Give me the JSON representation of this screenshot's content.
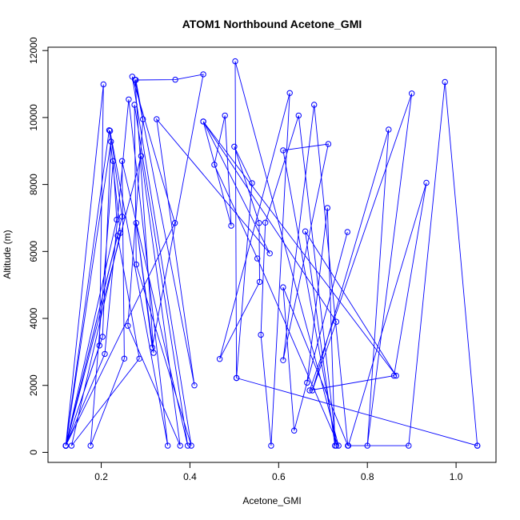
{
  "chart_data": {
    "type": "line",
    "title": "ATOM1 Northbound Acetone_GMI",
    "xlabel": "Acetone_GMI",
    "ylabel": "Altitude (m)",
    "xlim": [
      0.08,
      1.09
    ],
    "ylim": [
      -300,
      12100
    ],
    "xticks": [
      0.2,
      0.4,
      0.6,
      0.8,
      1.0
    ],
    "xtick_labels": [
      "0.2",
      "0.4",
      "0.6",
      "0.8",
      "1.0"
    ],
    "yticks": [
      0,
      2000,
      4000,
      6000,
      8000,
      10000,
      12000
    ],
    "ytick_labels": [
      "0",
      "2000",
      "4000",
      "6000",
      "8000",
      "10000",
      "12000"
    ],
    "grid": false,
    "color": "#0000ff",
    "series": [
      {
        "marker": "open-circle",
        "points": [
          [
            0.12,
            200
          ],
          [
            0.203,
            3450
          ],
          [
            0.222,
            9280
          ],
          [
            0.12,
            200
          ],
          [
            0.208,
            2940
          ],
          [
            0.262,
            10540
          ],
          [
            0.35,
            200
          ],
          [
            0.22,
            9600
          ],
          [
            0.247,
            7040
          ],
          [
            0.12,
            200
          ],
          [
            0.205,
            10990
          ],
          [
            0.196,
            3190
          ],
          [
            0.12,
            200
          ],
          [
            0.237,
            6470
          ],
          [
            0.286,
            2800
          ],
          [
            0.133,
            200
          ],
          [
            0.243,
            6550
          ],
          [
            0.218,
            9620
          ],
          [
            0.12,
            200
          ],
          [
            0.235,
            6950
          ],
          [
            0.227,
            8700
          ],
          [
            0.176,
            200
          ],
          [
            0.252,
            2800
          ],
          [
            0.247,
            8700
          ],
          [
            0.395,
            200
          ],
          [
            0.275,
            10380
          ],
          [
            0.279,
            5610
          ],
          [
            0.403,
            200
          ],
          [
            0.27,
            11220
          ],
          [
            0.366,
            6850
          ],
          [
            0.12,
            200
          ],
          [
            0.29,
            8850
          ],
          [
            0.378,
            200
          ],
          [
            0.26,
            3780
          ],
          [
            0.294,
            9950
          ],
          [
            0.278,
            11120
          ],
          [
            0.367,
            11130
          ],
          [
            0.43,
            11290
          ],
          [
            0.315,
            3130
          ],
          [
            0.279,
            6850
          ],
          [
            0.318,
            2970
          ],
          [
            0.276,
            11130
          ],
          [
            0.41,
            2000
          ],
          [
            0.325,
            9950
          ],
          [
            0.58,
            5940
          ],
          [
            0.43,
            9880
          ],
          [
            0.493,
            6770
          ],
          [
            0.479,
            10060
          ],
          [
            0.455,
            8590
          ],
          [
            0.552,
            5790
          ],
          [
            0.735,
            200
          ],
          [
            0.502,
            11680
          ],
          [
            0.505,
            2220
          ],
          [
            0.54,
            8040
          ],
          [
            0.5,
            9130
          ],
          [
            0.556,
            6850
          ],
          [
            0.557,
            5090
          ],
          [
            0.467,
            2790
          ],
          [
            0.625,
            10730
          ],
          [
            0.583,
            200
          ],
          [
            0.56,
            3510
          ],
          [
            0.57,
            6860
          ],
          [
            0.645,
            10060
          ],
          [
            0.73,
            200
          ],
          [
            0.61,
            9020
          ],
          [
            0.712,
            9210
          ],
          [
            0.61,
            2750
          ],
          [
            0.68,
            10380
          ],
          [
            0.756,
            200
          ],
          [
            0.61,
            4930
          ],
          [
            0.635,
            650
          ],
          [
            0.755,
            6580
          ],
          [
            0.664,
            2080
          ],
          [
            0.71,
            7300
          ],
          [
            0.727,
            200
          ],
          [
            0.66,
            6600
          ],
          [
            0.865,
            2290
          ],
          [
            0.43,
            9880
          ],
          [
            0.73,
            3900
          ],
          [
            0.676,
            1850
          ],
          [
            0.848,
            9640
          ],
          [
            0.8,
            200
          ],
          [
            0.9,
            10720
          ],
          [
            0.67,
            1850
          ],
          [
            0.86,
            2290
          ],
          [
            0.933,
            8050
          ],
          [
            0.757,
            200
          ],
          [
            0.893,
            200
          ],
          [
            0.975,
            11060
          ],
          [
            1.048,
            200
          ],
          [
            0.505,
            2220
          ],
          [
            1.048,
            200
          ]
        ]
      }
    ]
  }
}
